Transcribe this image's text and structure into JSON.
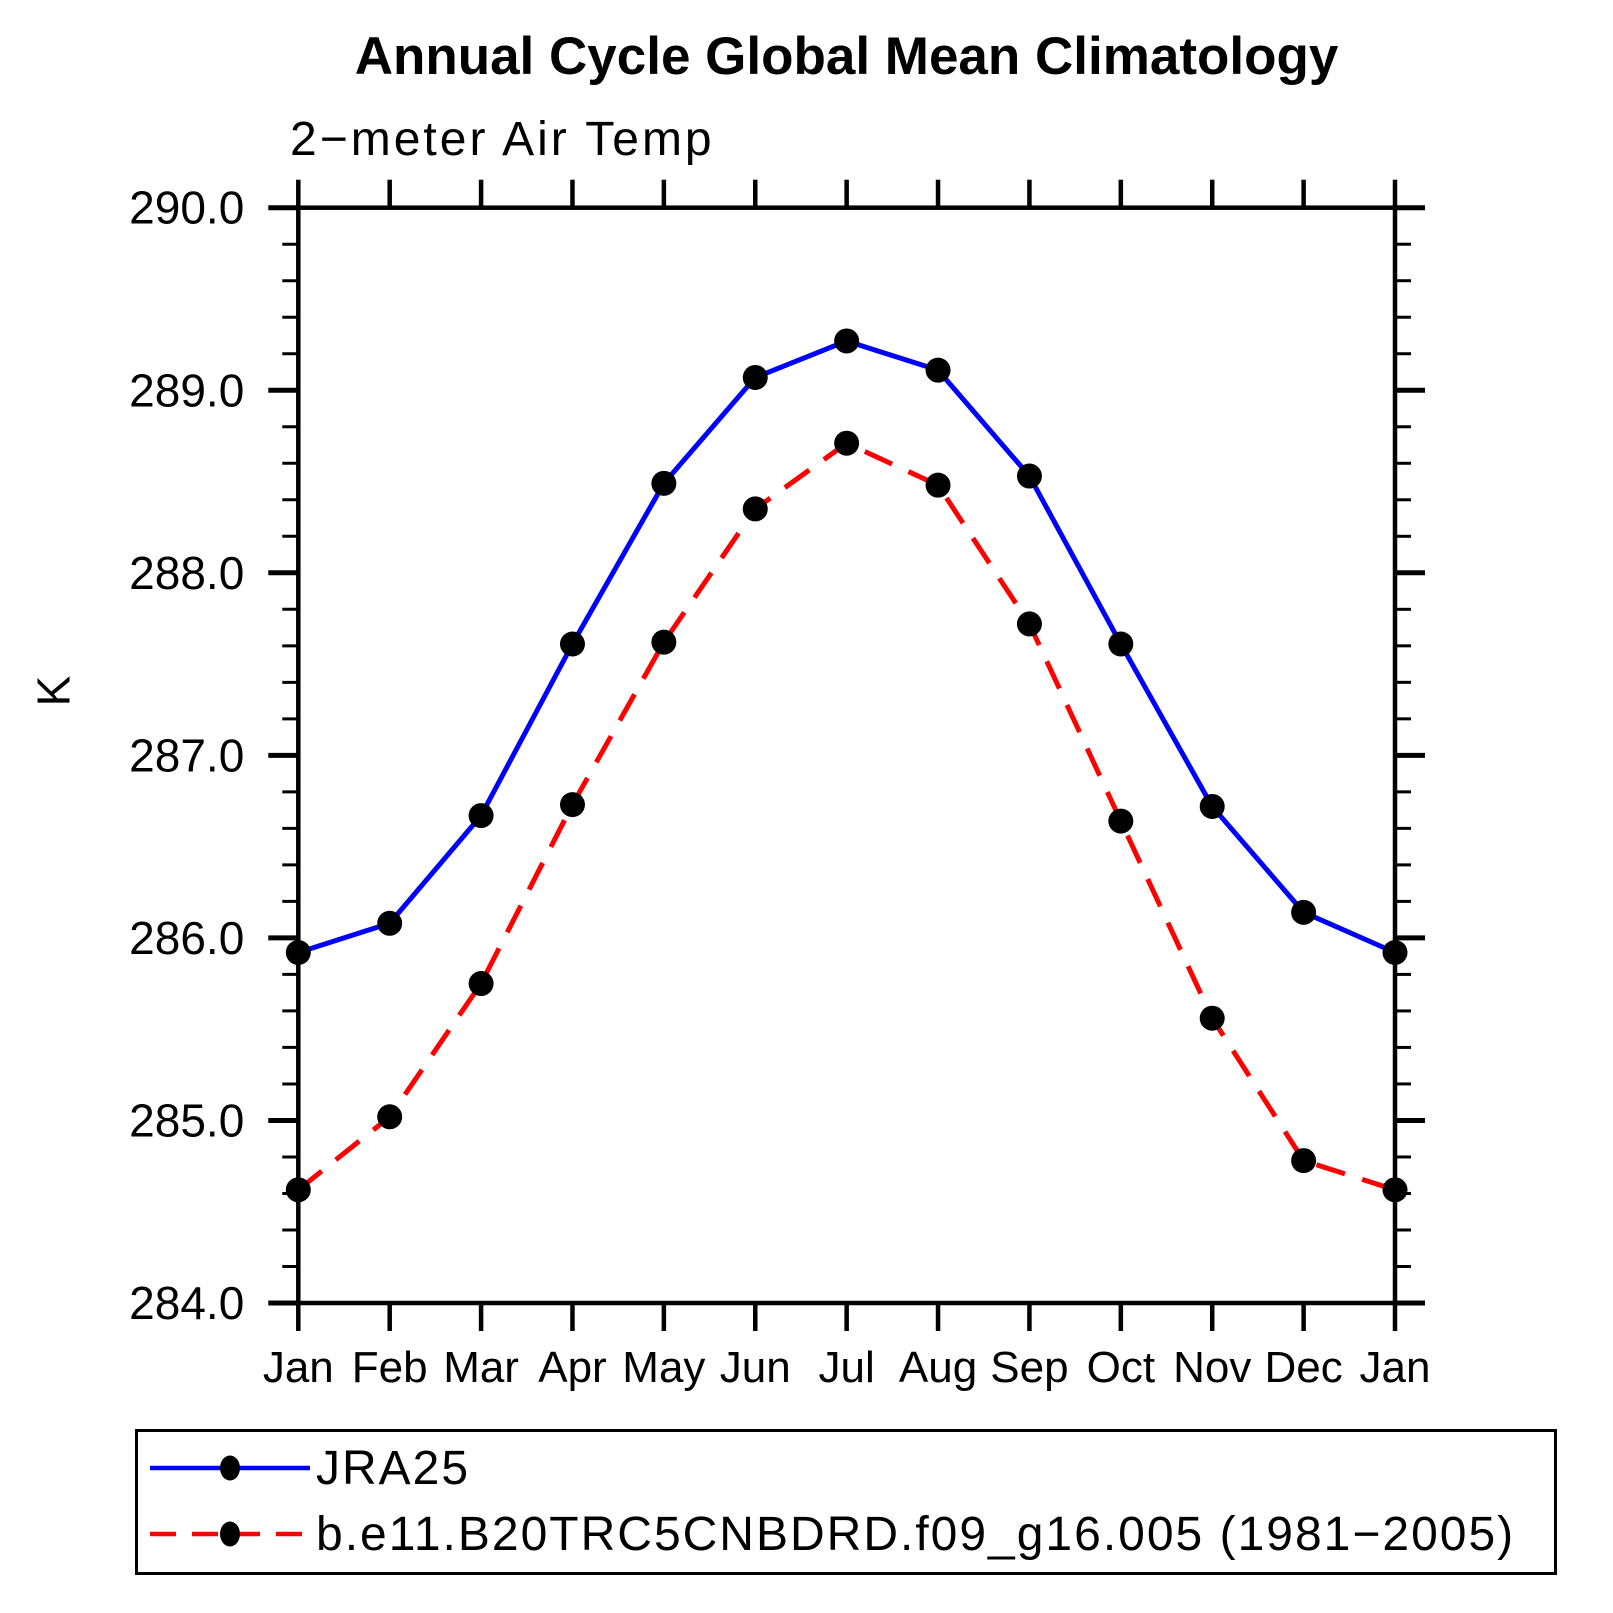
{
  "chart_data": {
    "type": "line",
    "title": "Annual Cycle Global Mean Climatology",
    "subtitle": "2−meter Air Temp",
    "ylabel": "K",
    "ylim": [
      284.0,
      290.0
    ],
    "ytick_step": 1.0,
    "yminor_step": 0.2,
    "ytick_labels": [
      "290.0",
      "289.0",
      "288.0",
      "287.0",
      "286.0",
      "285.0",
      "284.0"
    ],
    "categories": [
      "Jan",
      "Feb",
      "Mar",
      "Apr",
      "May",
      "Jun",
      "Jul",
      "Aug",
      "Sep",
      "Oct",
      "Nov",
      "Dec",
      "Jan"
    ],
    "grid": false,
    "legend_position": "bottom-box",
    "series": [
      {
        "name": "JRA25",
        "color": "#0000ff",
        "line_style": "solid",
        "marker": "filled-circle",
        "marker_color": "#000000",
        "values": [
          285.92,
          286.08,
          286.67,
          287.61,
          288.49,
          289.07,
          289.27,
          289.11,
          288.53,
          287.61,
          286.72,
          286.14,
          285.92
        ]
      },
      {
        "name": "b.e11.B20TRC5CNBDRD.f09_g16.005 (1981−2005)",
        "color": "#ff0000",
        "line_style": "dashed",
        "marker": "filled-circle",
        "marker_color": "#000000",
        "values": [
          284.62,
          285.02,
          285.75,
          286.73,
          287.62,
          288.35,
          288.71,
          288.48,
          287.72,
          286.64,
          285.56,
          284.78,
          284.62
        ]
      }
    ]
  }
}
